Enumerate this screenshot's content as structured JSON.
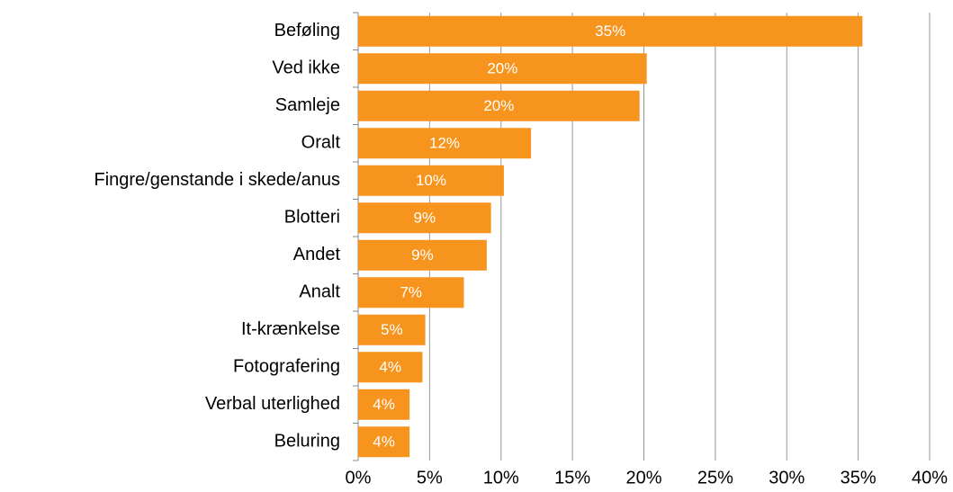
{
  "chart_data": {
    "type": "bar",
    "orientation": "horizontal",
    "categories": [
      "Beføling",
      "Ved ikke",
      "Samleje",
      "Oralt",
      "Fingre/genstande i skede/anus",
      "Blotteri",
      "Andet",
      "Analt",
      "It-krænkelse",
      "Fotografering",
      "Verbal uterlighed",
      "Beluring"
    ],
    "values": [
      35.3,
      20.2,
      19.7,
      12.1,
      10.2,
      9.3,
      9.0,
      7.4,
      4.7,
      4.5,
      3.6,
      3.6
    ],
    "value_labels": [
      "35%",
      "20%",
      "20%",
      "12%",
      "10%",
      "9%",
      "9%",
      "7%",
      "5%",
      "4%",
      "4%",
      "4%"
    ],
    "color": "#f7941d",
    "xlim": [
      0,
      40
    ],
    "xticks": [
      {
        "value": 0,
        "label": "0%"
      },
      {
        "value": 5,
        "label": "5%"
      },
      {
        "value": 10,
        "label": "10%"
      },
      {
        "value": 15,
        "label": "15%"
      },
      {
        "value": 20,
        "label": "20%"
      },
      {
        "value": 25,
        "label": "25%"
      },
      {
        "value": 30,
        "label": "30%"
      },
      {
        "value": 35,
        "label": "35%"
      },
      {
        "value": 40,
        "label": "40%"
      }
    ],
    "grid": true
  }
}
